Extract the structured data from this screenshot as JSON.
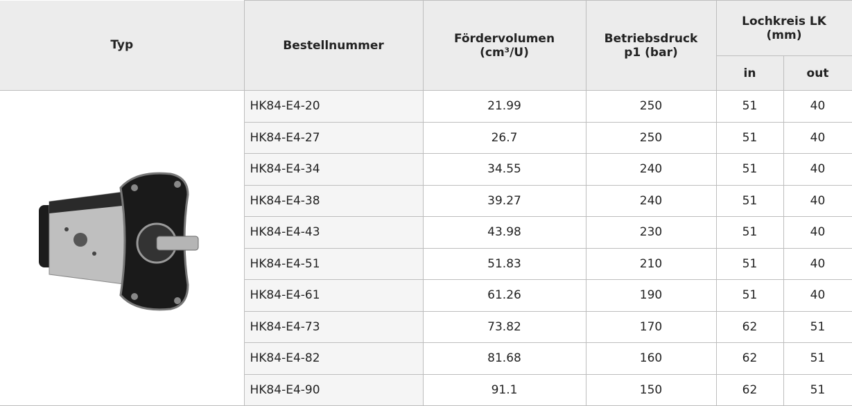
{
  "header": {
    "typ": "Typ",
    "bestellnummer": "Bestellnummer",
    "foerdervolumen": [
      "Fördervolumen",
      "(cm³/U)"
    ],
    "betriebsdruck": [
      "Betriebsdruck",
      "p1 (bar)"
    ],
    "lochkreis": [
      "Lochkreis LK",
      "(mm)"
    ],
    "in": "in",
    "out": "out"
  },
  "table": {
    "rows": [
      [
        "HK84-E4-20",
        21.99,
        250,
        51,
        40
      ],
      [
        "HK84-E4-27",
        26.7,
        250,
        51,
        40
      ],
      [
        "HK84-E4-34",
        34.55,
        240,
        51,
        40
      ],
      [
        "HK84-E4-38",
        39.27,
        240,
        51,
        40
      ],
      [
        "HK84-E4-43",
        43.98,
        230,
        51,
        40
      ],
      [
        "HK84-E4-51",
        51.83,
        210,
        51,
        40
      ],
      [
        "HK84-E4-61",
        61.26,
        190,
        51,
        40
      ],
      [
        "HK84-E4-73",
        73.82,
        170,
        62,
        51
      ],
      [
        "HK84-E4-82",
        81.68,
        160,
        62,
        51
      ],
      [
        "HK84-E4-90",
        91.1,
        150,
        62,
        51
      ]
    ]
  }
}
